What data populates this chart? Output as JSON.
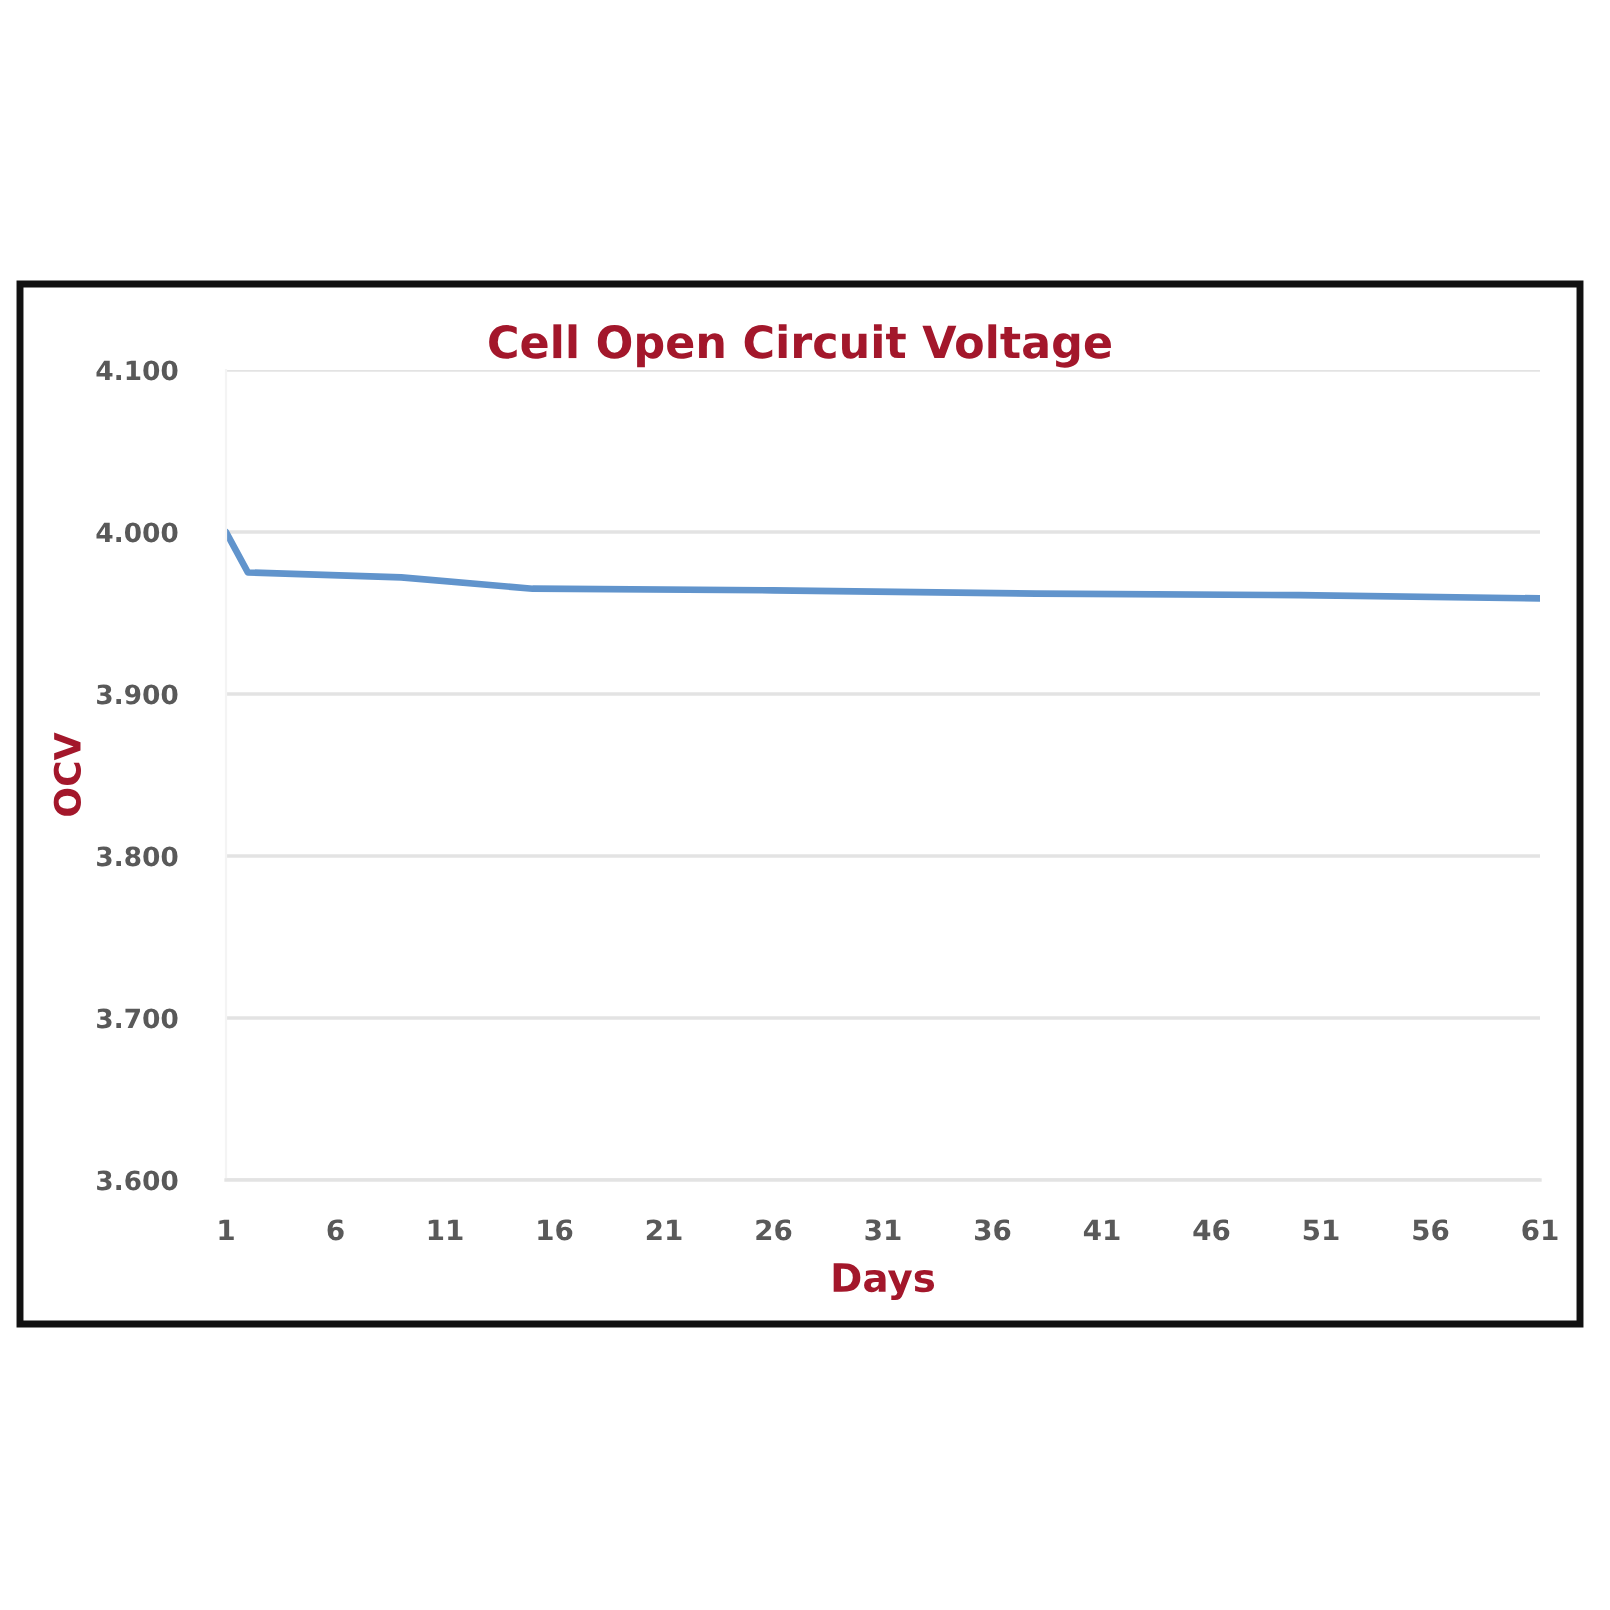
{
  "chart_data": {
    "type": "line",
    "title": "Cell Open Circuit Voltage",
    "xlabel": "Days",
    "ylabel": "OCV",
    "x": [
      1,
      2,
      9,
      15,
      26,
      38,
      50,
      61
    ],
    "series": [
      {
        "color": "#6194cc",
        "values": [
          4.0,
          3.975,
          3.972,
          3.965,
          3.964,
          3.962,
          3.961,
          3.959
        ]
      }
    ],
    "xlim": [
      1,
      61
    ],
    "xticks": [
      1,
      6,
      11,
      16,
      21,
      26,
      31,
      36,
      41,
      46,
      51,
      56,
      61
    ],
    "ylim": [
      3.6,
      4.1
    ],
    "yticks": [
      {
        "value": 3.6,
        "label": "3.600"
      },
      {
        "value": 3.7,
        "label": "3.700"
      },
      {
        "value": 3.8,
        "label": "3.800"
      },
      {
        "value": 3.9,
        "label": "3.900"
      },
      {
        "value": 4.0,
        "label": "4.000"
      },
      {
        "value": 4.1,
        "label": "4.100"
      }
    ],
    "grid": "y"
  }
}
